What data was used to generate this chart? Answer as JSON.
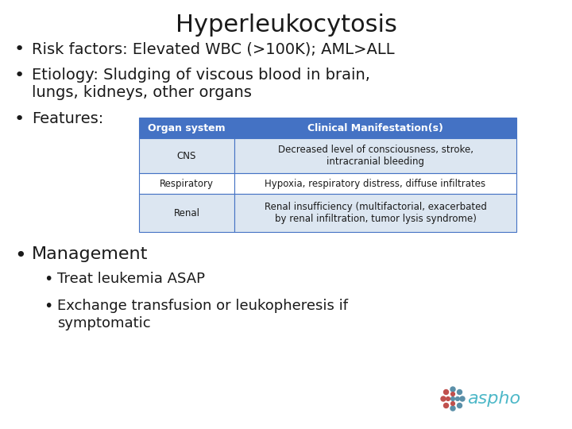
{
  "title": "Hyperleukocytosis",
  "title_fontsize": 22,
  "title_color": "#1a1a1a",
  "background_color": "#ffffff",
  "bullet_fontsize": 14,
  "bullet1": "Risk factors: Elevated WBC (>100K); AML>ALL",
  "bullet2_line1": "Etiology: Sludging of viscous blood in brain,",
  "bullet2_line2": "lungs, kidneys, other organs",
  "bullet3": "Features:",
  "table_header": [
    "Organ system",
    "Clinical Manifestation(s)"
  ],
  "table_rows": [
    [
      "CNS",
      "Decreased level of consciousness, stroke,\nintracranial bleeding"
    ],
    [
      "Respiratory",
      "Hypoxia, respiratory distress, diffuse infiltrates"
    ],
    [
      "Renal",
      "Renal insufficiency (multifactorial, exacerbated\nby renal infiltration, tumor lysis syndrome)"
    ]
  ],
  "table_header_bg": "#4472C4",
  "table_header_color": "#ffffff",
  "table_row_bg_odd": "#dce6f1",
  "table_row_bg_even": "#ffffff",
  "table_border_color": "#4472C4",
  "management_bullet": "Management",
  "sub_bullet1": "Treat leukemia ASAP",
  "sub_bullet2_line1": "Exchange transfusion or leukopheresis if",
  "sub_bullet2_line2": "symptomatic",
  "sub_bullet_fontsize": 13,
  "aspho_text": "aspho",
  "aspho_text_color": "#4db8c8",
  "aspho_dot_blue": "#5a8fa8",
  "aspho_dot_orange": "#c0504d"
}
